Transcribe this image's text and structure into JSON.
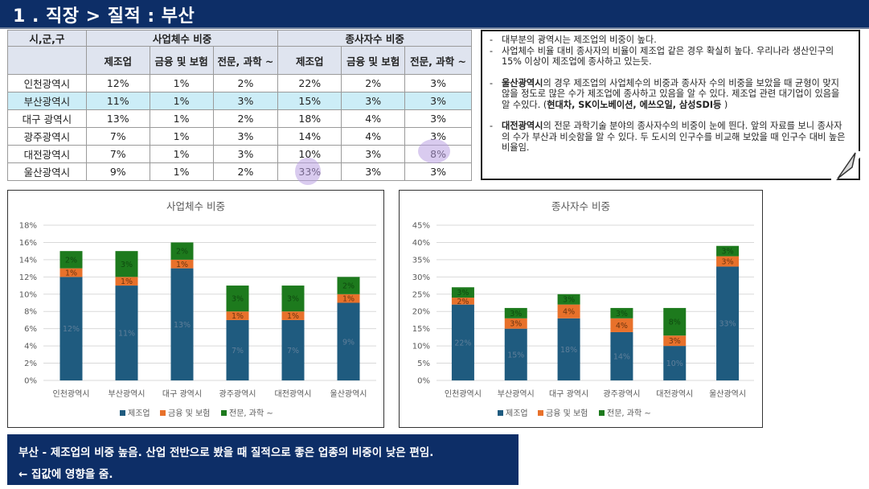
{
  "title": "1 . 직장 > 질적 : 부산",
  "table": {
    "col_city": "시,군,구",
    "group1": "사업체수 비중",
    "group2": "종사자수 비중",
    "sub": [
      "제조업",
      "금융 및 보험",
      "전문, 과학 ~",
      "제조업",
      "금융 및 보험",
      "전문, 과학 ~"
    ],
    "rows": [
      {
        "city": "인천광역시",
        "cells": [
          "12%",
          "1%",
          "2%",
          "22%",
          "2%",
          "3%"
        ]
      },
      {
        "city": "부산광역시",
        "cells": [
          "11%",
          "1%",
          "3%",
          "15%",
          "3%",
          "3%"
        ],
        "highlight": true
      },
      {
        "city": "대구 광역시",
        "cells": [
          "13%",
          "1%",
          "2%",
          "18%",
          "4%",
          "3%"
        ]
      },
      {
        "city": "광주광역시",
        "cells": [
          "7%",
          "1%",
          "3%",
          "14%",
          "4%",
          "3%"
        ]
      },
      {
        "city": "대전광역시",
        "cells": [
          "7%",
          "1%",
          "3%",
          "10%",
          "3%",
          "8%"
        ]
      },
      {
        "city": "울산광역시",
        "cells": [
          "9%",
          "1%",
          "2%",
          "33%",
          "3%",
          "3%"
        ]
      }
    ]
  },
  "notes": {
    "n1": "대부분의 광역시는 제조업의 비중이 높다.",
    "n2": "사업체수 비율 대비 종사자의 비율이 제조업 같은 경우 확실히 높다. 우리나라 생산인구의 15% 이상이 제조업에 종사하고 있는듯.",
    "n3_bold": "울산광역시",
    "n3_text": "의 경우 제조업의 사업체수의 비중과 종사자 수의 비중을 보았을 때 균형이 맞지 않을 정도로 많은 수가 제조업에 종사하고 있음을 알 수 있다. 제조업 관련 대기업이 있음을 알 수있다. (",
    "n3_bold2": "현대차, SK이노베이션, 에쓰오일, 삼성SDI등",
    "n3_end": " )",
    "n4_bold": "대전광역시",
    "n4_text": "의 전문 과학기술 분야의 종사자수의 비중이 눈에 띈다. 앞의 자료를 보니 종사자의 수가 부산과 비슷함을 알 수 있다. 두 도시의 인구수를 비교해 보았을 때 인구수 대비 높은 비율임."
  },
  "colors": {
    "manufacturing": "#1f5b7f",
    "finance": "#e8712b",
    "science": "#1d7a1d",
    "navy": "#0d2e67"
  },
  "chart_data": [
    {
      "type": "bar",
      "stacked": true,
      "title": "사업체수 비중",
      "categories": [
        "인천광역시",
        "부산광역시",
        "대구 광역시",
        "광주광역시",
        "대전광역시",
        "울산광역시"
      ],
      "series": [
        {
          "name": "제조업",
          "values": [
            12,
            11,
            13,
            7,
            7,
            9
          ],
          "labels": [
            "12%",
            "11%",
            "13%",
            "7%",
            "7%",
            "9%"
          ]
        },
        {
          "name": "금융 및 보험",
          "values": [
            1,
            1,
            1,
            1,
            1,
            1
          ],
          "labels": [
            "1%",
            "1%",
            "1%",
            "1%",
            "1%",
            "1%"
          ]
        },
        {
          "name": "전문, 과학 ~",
          "values": [
            2,
            3,
            2,
            3,
            3,
            2
          ],
          "labels": [
            "2%",
            "3%",
            "2%",
            "3%",
            "3%",
            "2%"
          ]
        }
      ],
      "ylim": [
        0,
        18
      ],
      "yticks": [
        "0%",
        "2%",
        "4%",
        "6%",
        "8%",
        "10%",
        "12%",
        "14%",
        "16%",
        "18%"
      ],
      "grid": true,
      "legend": "bottom"
    },
    {
      "type": "bar",
      "stacked": true,
      "title": "종사자수 비중",
      "categories": [
        "인천광역시",
        "부산광역시",
        "대구 광역시",
        "광주광역시",
        "대전광역시",
        "울산광역시"
      ],
      "series": [
        {
          "name": "제조업",
          "values": [
            22,
            15,
            18,
            14,
            10,
            33
          ],
          "labels": [
            "22%",
            "15%",
            "18%",
            "14%",
            "10%",
            "33%"
          ]
        },
        {
          "name": "금융 및 보험",
          "values": [
            2,
            3,
            4,
            4,
            3,
            3
          ],
          "labels": [
            "2%",
            "3%",
            "4%",
            "4%",
            "3%",
            "3%"
          ]
        },
        {
          "name": "전문, 과학 ~",
          "values": [
            3,
            3,
            3,
            3,
            8,
            3
          ],
          "labels": [
            "3%",
            "3%",
            "3%",
            "3%",
            "8%",
            "3%"
          ]
        }
      ],
      "ylim": [
        0,
        45
      ],
      "yticks": [
        "0%",
        "5%",
        "10%",
        "15%",
        "20%",
        "25%",
        "30%",
        "35%",
        "40%",
        "45%"
      ],
      "grid": true,
      "legend": "bottom"
    }
  ],
  "summary": {
    "line1": "부산 -  제조업의 비중 높음. 산업 전반으로 봤을 때 질적으로 좋은 업종의 비중이 낮은 편임.",
    "line2": "← 집값에 영향을 줌."
  }
}
